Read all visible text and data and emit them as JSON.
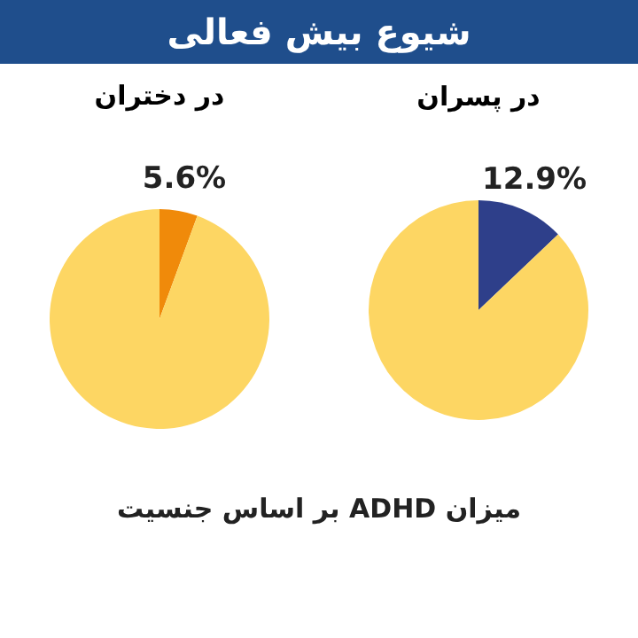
{
  "chart_data": [
    {
      "type": "other",
      "title": "شیوع بیش فعالی",
      "annotations": [
        "میزان ADHD بر اساس جنسیت"
      ]
    },
    {
      "type": "pie",
      "title": "در پسران",
      "categories": [
        null,
        null
      ],
      "values": [
        12.9,
        87.1
      ],
      "colors": [
        "#2e3f8a",
        "#fdd663"
      ],
      "value_labels": [
        "12.9%",
        null
      ]
    },
    {
      "type": "pie",
      "title": "در دختران",
      "categories": [
        null,
        null
      ],
      "values": [
        5.6,
        94.4
      ],
      "colors": [
        "#f08a0a",
        "#fdd663"
      ],
      "value_labels": [
        "5.6%",
        null
      ]
    }
  ]
}
